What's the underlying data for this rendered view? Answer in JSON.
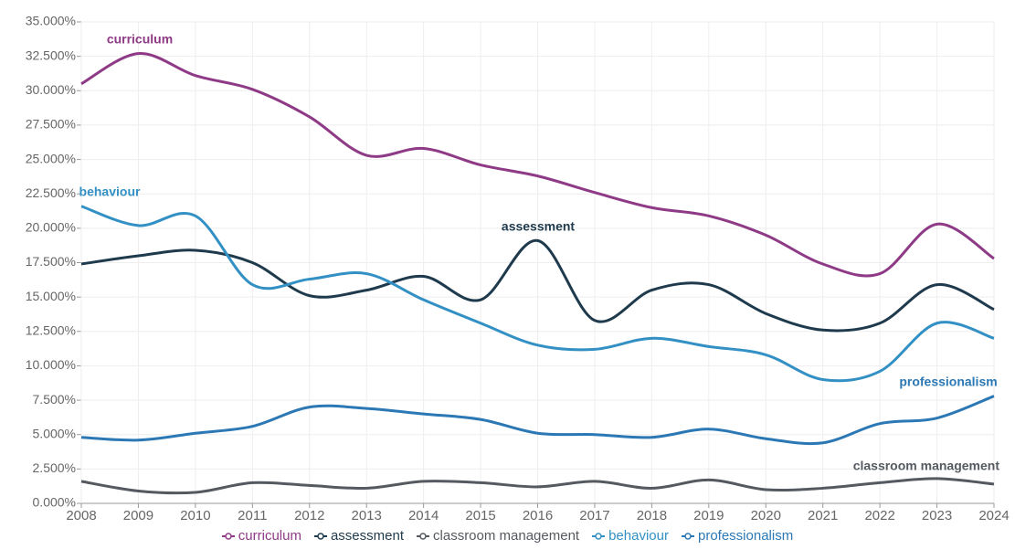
{
  "chart_data": {
    "type": "line",
    "x": [
      2008,
      2009,
      2010,
      2011,
      2012,
      2013,
      2014,
      2015,
      2016,
      2017,
      2018,
      2019,
      2020,
      2021,
      2022,
      2023,
      2024
    ],
    "xlim": [
      2008,
      2024
    ],
    "xticks": [
      2008,
      2009,
      2010,
      2011,
      2012,
      2013,
      2014,
      2015,
      2016,
      2017,
      2018,
      2019,
      2020,
      2021,
      2022,
      2023,
      2024
    ],
    "ylim": [
      0,
      35
    ],
    "yticks": [
      {
        "value": 0,
        "label": "0.000%"
      },
      {
        "value": 2.5,
        "label": "2.500%"
      },
      {
        "value": 5,
        "label": "5.000%"
      },
      {
        "value": 7.5,
        "label": "7.500%"
      },
      {
        "value": 10,
        "label": "10.000%"
      },
      {
        "value": 12.5,
        "label": "12.500%"
      },
      {
        "value": 15,
        "label": "15.000%"
      },
      {
        "value": 17.5,
        "label": "17.500%"
      },
      {
        "value": 20,
        "label": "20.000%"
      },
      {
        "value": 22.5,
        "label": "22.500%"
      },
      {
        "value": 25,
        "label": "25.000%"
      },
      {
        "value": 27.5,
        "label": "27.500%"
      },
      {
        "value": 30,
        "label": "30.000%"
      },
      {
        "value": 32.5,
        "label": "32.500%"
      },
      {
        "value": 35,
        "label": "35.000%"
      }
    ],
    "grid": true,
    "legend": "bottom",
    "series": [
      {
        "name": "curriculum",
        "color": "#8e3a86",
        "values": [
          30.5,
          32.7,
          31.1,
          30.1,
          28.1,
          25.3,
          25.8,
          24.6,
          23.8,
          22.6,
          21.5,
          20.9,
          19.5,
          17.4,
          16.7,
          20.3,
          17.8
        ]
      },
      {
        "name": "assessment",
        "color": "#1f3a4d",
        "values": [
          17.4,
          18.0,
          18.4,
          17.5,
          15.1,
          15.5,
          16.5,
          14.8,
          19.1,
          13.3,
          15.5,
          15.9,
          13.8,
          12.6,
          13.1,
          15.9,
          14.1
        ]
      },
      {
        "name": "classroom management",
        "color": "#555a60",
        "values": [
          1.6,
          0.9,
          0.8,
          1.5,
          1.3,
          1.1,
          1.6,
          1.5,
          1.2,
          1.6,
          1.1,
          1.7,
          1.0,
          1.1,
          1.5,
          1.8,
          1.4
        ]
      },
      {
        "name": "behaviour",
        "color": "#3390c4",
        "values": [
          21.6,
          20.2,
          20.9,
          15.9,
          16.3,
          16.7,
          14.8,
          13.1,
          11.5,
          11.2,
          12.0,
          11.4,
          10.8,
          9.0,
          9.6,
          13.1,
          12.0
        ]
      },
      {
        "name": "professionalism",
        "color": "#2b78b5",
        "values": [
          4.8,
          4.6,
          5.1,
          5.6,
          7.0,
          6.9,
          6.5,
          6.1,
          5.1,
          5.0,
          4.8,
          5.4,
          4.7,
          4.4,
          5.8,
          6.2,
          7.8
        ]
      }
    ]
  }
}
